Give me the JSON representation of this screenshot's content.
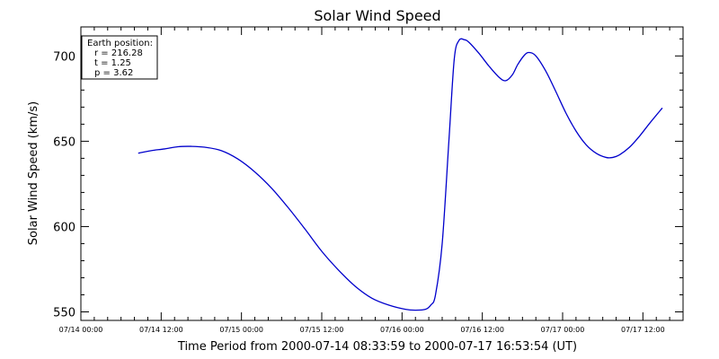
{
  "chart_data": {
    "type": "line",
    "title": "Solar Wind Speed",
    "xlabel": "Time Period from 2000-07-14 08:33:59 to 2000-07-17 16:53:54 (UT)",
    "ylabel": "Solar Wind Speed (km/s)",
    "x_axis_units": "hours since 07/14 00:00",
    "xlim": [
      0,
      90
    ],
    "ylim": [
      545,
      717
    ],
    "x_ticks": [
      {
        "value": 0,
        "label": "07/14 00:00"
      },
      {
        "value": 12,
        "label": "07/14 12:00"
      },
      {
        "value": 24,
        "label": "07/15 00:00"
      },
      {
        "value": 36,
        "label": "07/15 12:00"
      },
      {
        "value": 48,
        "label": "07/16 00:00"
      },
      {
        "value": 60,
        "label": "07/16 12:00"
      },
      {
        "value": 72,
        "label": "07/17 00:00"
      },
      {
        "value": 84,
        "label": "07/17 12:00"
      }
    ],
    "y_ticks": [
      {
        "value": 550,
        "label": "550"
      },
      {
        "value": 600,
        "label": "600"
      },
      {
        "value": 650,
        "label": "650"
      },
      {
        "value": 700,
        "label": "700"
      }
    ],
    "series": [
      {
        "color": "#0000cc",
        "points": [
          [
            8.57,
            643
          ],
          [
            10.5,
            644.5
          ],
          [
            12.5,
            645.5
          ],
          [
            14.5,
            646.8
          ],
          [
            16.5,
            647
          ],
          [
            18.5,
            646.5
          ],
          [
            21,
            644.5
          ],
          [
            23.5,
            639.5
          ],
          [
            26,
            632
          ],
          [
            28.5,
            622.5
          ],
          [
            31,
            611
          ],
          [
            33.5,
            598.5
          ],
          [
            36,
            585.5
          ],
          [
            38.5,
            574.5
          ],
          [
            41,
            565
          ],
          [
            43.5,
            558
          ],
          [
            46,
            554
          ],
          [
            48.5,
            551.5
          ],
          [
            50,
            551
          ],
          [
            51.5,
            551.5
          ],
          [
            52.3,
            554
          ],
          [
            53,
            560
          ],
          [
            54,
            590
          ],
          [
            55,
            650
          ],
          [
            55.8,
            698
          ],
          [
            56.5,
            709
          ],
          [
            57.3,
            709.5
          ],
          [
            58,
            708
          ],
          [
            59.5,
            701.5
          ],
          [
            61,
            694
          ],
          [
            62.5,
            687.5
          ],
          [
            63.5,
            685.5
          ],
          [
            64.5,
            689
          ],
          [
            65.3,
            695
          ],
          [
            66.3,
            700.5
          ],
          [
            67,
            702
          ],
          [
            68,
            700
          ],
          [
            69.5,
            691
          ],
          [
            71,
            679
          ],
          [
            72.5,
            666.5
          ],
          [
            74,
            656
          ],
          [
            75.5,
            648
          ],
          [
            77,
            643
          ],
          [
            78.5,
            640.5
          ],
          [
            79.5,
            640.5
          ],
          [
            80.5,
            642
          ],
          [
            82,
            646.5
          ],
          [
            83.5,
            653
          ],
          [
            85,
            660.5
          ],
          [
            86.9,
            669.5
          ]
        ]
      }
    ]
  },
  "legend": {
    "title": "Earth position:",
    "lines": [
      "r = 216.28",
      "t = 1.25",
      "p = 3.62"
    ]
  }
}
